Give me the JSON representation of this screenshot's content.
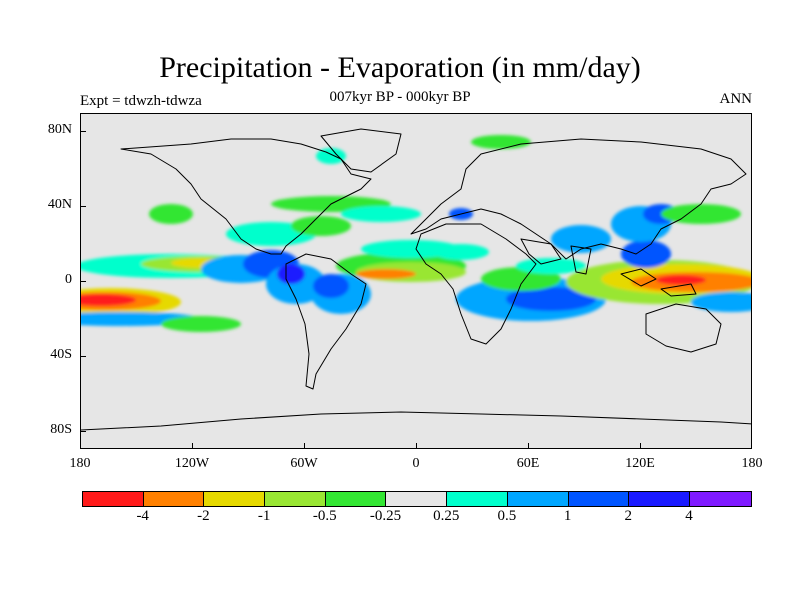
{
  "title": "Precipitation - Evaporation (in mm/day)",
  "subtitle": "007kyr BP - 000kyr BP",
  "experiment": "Expt = tdwzh-tdwza",
  "season": "ANN",
  "y_ticks": [
    "80N",
    "40N",
    "0",
    "40S",
    "80S"
  ],
  "x_ticks": [
    "180",
    "120W",
    "60W",
    "0",
    "60E",
    "120E",
    "180"
  ],
  "colorbar": {
    "colors": [
      "#ff1a1a",
      "#ff8000",
      "#e6d900",
      "#99e633",
      "#33e633",
      "#e6e6e6",
      "#00ffcc",
      "#00a6ff",
      "#0055ff",
      "#1a1aff",
      "#7f1aff"
    ],
    "labels": [
      "-4",
      "-2",
      "-1",
      "-0.5",
      "-0.25",
      "0.25",
      "0.5",
      "1",
      "2",
      "4"
    ]
  }
}
